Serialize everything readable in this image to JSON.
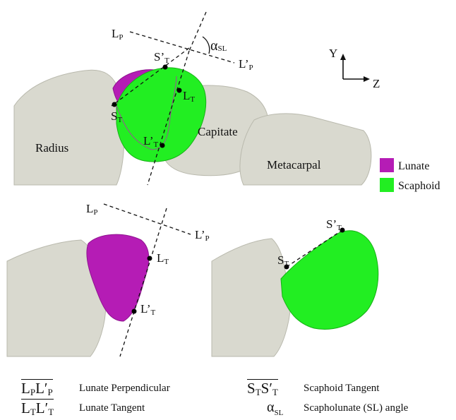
{
  "colors": {
    "lunate": "#b51cb5",
    "scaphoid": "#22ee22",
    "bone": "#d9d9cf"
  },
  "top": {
    "Lp": "L",
    "Lp_sub": "P",
    "Lpp": "L’",
    "Lpp_sub": "P",
    "alpha": "α",
    "alpha_sub": "SL",
    "St": "S",
    "St_sub": "T",
    "Stp": "S’",
    "Stp_sub": "T",
    "Lt": "L",
    "Lt_sub": "T",
    "Ltp": "L’",
    "Ltp_sub": "T",
    "radius": "Radius",
    "capitate": "Capitate",
    "metacarpal": "Metacarpal"
  },
  "axes": {
    "y": "Y",
    "z": "Z"
  },
  "legend": [
    {
      "name": "Lunate",
      "color": "#b51cb5"
    },
    {
      "name": "Scaphoid",
      "color": "#22ee22"
    }
  ],
  "bottom_left": {
    "Lp": "L",
    "Lp_sub": "P",
    "Lpp": "L’",
    "Lpp_sub": "P",
    "Lt": "L",
    "Lt_sub": "T",
    "Ltp": "L’",
    "Ltp_sub": "T"
  },
  "bottom_right": {
    "St": "S",
    "St_sub": "T",
    "Stp": "S’",
    "Stp_sub": "T"
  },
  "key": [
    {
      "sym_a": "L",
      "sub_a": "P",
      "sym_b": "L′",
      "sub_b": "P",
      "text": "Lunate Perpendicular"
    },
    {
      "sym_a": "L",
      "sub_a": "T",
      "sym_b": "L′",
      "sub_b": "T",
      "text": "Lunate Tangent"
    },
    {
      "sym_a": "S",
      "sub_a": "T",
      "sym_b": "S′",
      "sub_b": "T",
      "text": "Scaphoid Tangent"
    },
    {
      "sym": "α",
      "sub": "SL",
      "text": "Scapholunate (SL) angle"
    }
  ]
}
